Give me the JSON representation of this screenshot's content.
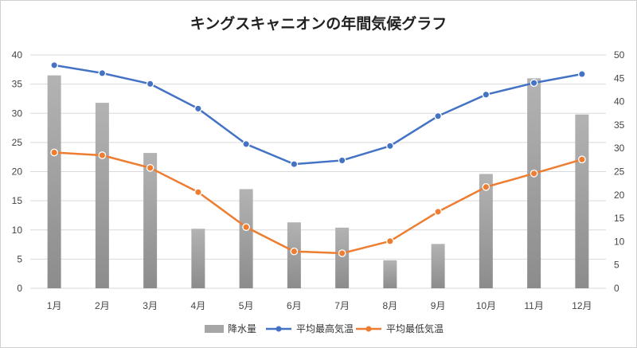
{
  "chart_data": {
    "type": "bar+line",
    "title": "キングスキャニオンの年間気候グラフ",
    "categories": [
      "1月",
      "2月",
      "3月",
      "4月",
      "5月",
      "6月",
      "7月",
      "8月",
      "9月",
      "10月",
      "11月",
      "12月"
    ],
    "series": [
      {
        "name": "降水量",
        "type": "bar",
        "axis": "left",
        "values": [
          36.5,
          31.8,
          23.2,
          10.2,
          17.0,
          11.3,
          10.4,
          4.8,
          7.6,
          19.6,
          36.0,
          29.8
        ],
        "color": "#a6a6a6"
      },
      {
        "name": "平均最高気温",
        "type": "line",
        "axis": "right",
        "values": [
          47.8,
          46.1,
          43.8,
          38.5,
          30.9,
          26.6,
          27.4,
          30.5,
          36.9,
          41.5,
          44.0,
          45.9
        ],
        "color": "#4472c4"
      },
      {
        "name": "平均最低気温",
        "type": "line",
        "axis": "right",
        "values": [
          29.1,
          28.5,
          25.8,
          20.6,
          13.1,
          7.9,
          7.5,
          10.1,
          16.4,
          21.7,
          24.6,
          27.6
        ],
        "color": "#ed7d31"
      }
    ],
    "left_axis": {
      "ylim": [
        0,
        40
      ],
      "ticks": [
        "0",
        "5",
        "10",
        "15",
        "20",
        "25",
        "30",
        "35",
        "40"
      ]
    },
    "right_axis": {
      "ylim": [
        0,
        50
      ],
      "ticks": [
        "0",
        "5",
        "10",
        "15",
        "20",
        "25",
        "30",
        "35",
        "40",
        "45",
        "50"
      ]
    },
    "grid": true,
    "legend": "bottom"
  }
}
